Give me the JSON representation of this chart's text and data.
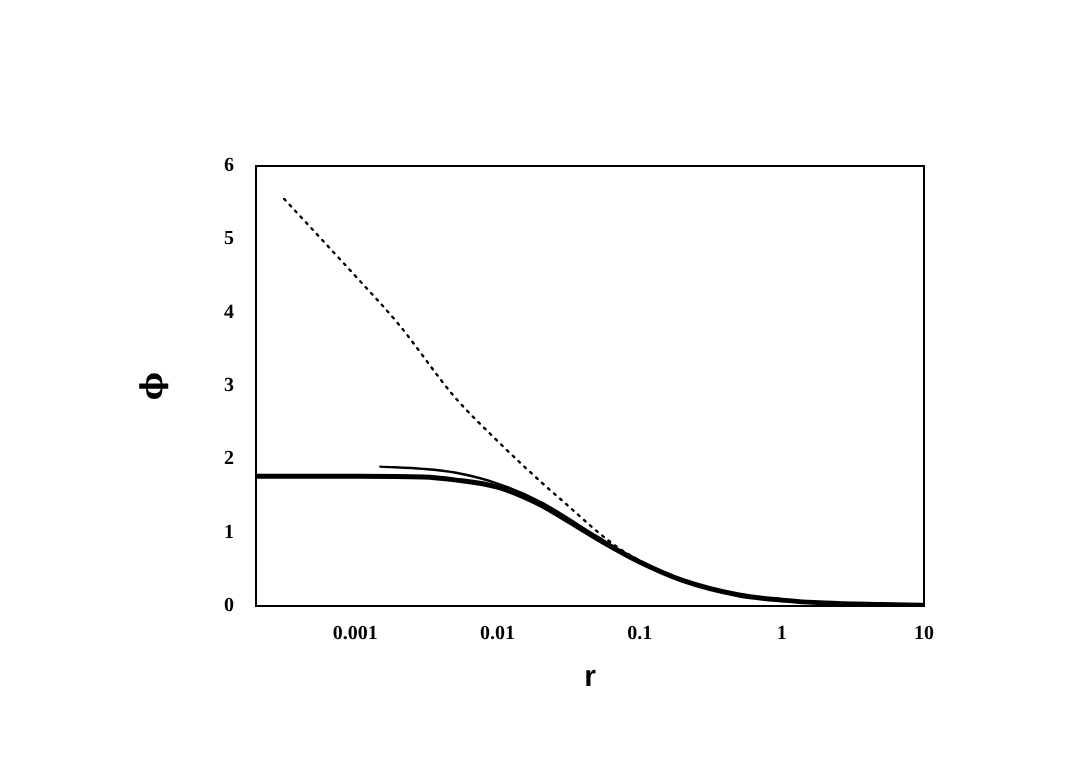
{
  "chart_data": {
    "type": "line",
    "xlabel": "r",
    "ylabel": "ϕ",
    "log": "x",
    "xlim": [
      0.0002,
      10
    ],
    "ylim": [
      0,
      6
    ],
    "xticks": [
      0.001,
      0.01,
      0.1,
      1,
      10
    ],
    "yticks": [
      0,
      1,
      2,
      3,
      4,
      5,
      6
    ],
    "grid": false,
    "legend": false,
    "marker": "none",
    "series": [
      {
        "color": "#000000",
        "line_style": "dotted",
        "x": [
          0.000316,
          0.001,
          0.002,
          0.005,
          0.01,
          0.02,
          0.03,
          0.05,
          0.07,
          0.1,
          0.2,
          0.5,
          1,
          3,
          10
        ],
        "values": [
          5.55,
          4.5,
          3.85,
          2.85,
          2.25,
          1.7,
          1.4,
          1.02,
          0.8,
          0.62,
          0.35,
          0.15,
          0.08,
          0.03,
          0.01
        ]
      },
      {
        "color": "#000000",
        "line_style": "solid",
        "x": [
          0.0002,
          0.001,
          0.003,
          0.005,
          0.01,
          0.02,
          0.03,
          0.05,
          0.1,
          0.2,
          0.5,
          1,
          2,
          5,
          10
        ],
        "values": [
          1.77,
          1.77,
          1.76,
          1.72,
          1.62,
          1.38,
          1.18,
          0.92,
          0.6,
          0.35,
          0.15,
          0.08,
          0.04,
          0.02,
          0.01
        ]
      },
      {
        "color": "#000000",
        "line_style": "solid",
        "x": [
          0.0015,
          0.003,
          0.005,
          0.01,
          0.02,
          0.05,
          0.1,
          0.3,
          1,
          10
        ],
        "values": [
          1.9,
          1.87,
          1.82,
          1.67,
          1.42,
          0.95,
          0.6,
          0.25,
          0.08,
          0.01
        ]
      }
    ]
  }
}
